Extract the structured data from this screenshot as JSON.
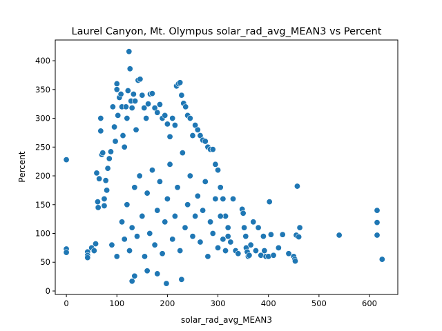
{
  "chart_data": {
    "type": "scatter",
    "title": "Laurel Canyon, Mt. Olympus solar_rad_avg_MEAN3 vs Percent",
    "xlabel": "solar_rad_avg_MEAN3",
    "ylabel": "Percent",
    "xlim": [
      -22,
      656
    ],
    "ylim": [
      -6,
      436
    ],
    "xticks": [
      0,
      100,
      200,
      300,
      400,
      500,
      600
    ],
    "yticks": [
      0,
      50,
      100,
      150,
      200,
      250,
      300,
      350,
      400
    ],
    "grid": false,
    "marker_color": "#1f77b4",
    "marker_edge_color": "#ffffff",
    "points": [
      [
        0,
        228
      ],
      [
        0,
        73
      ],
      [
        0,
        67
      ],
      [
        42,
        68
      ],
      [
        42,
        62
      ],
      [
        42,
        58
      ],
      [
        50,
        75
      ],
      [
        55,
        70
      ],
      [
        58,
        82
      ],
      [
        60,
        205
      ],
      [
        62,
        155
      ],
      [
        63,
        145
      ],
      [
        65,
        195
      ],
      [
        68,
        300
      ],
      [
        68,
        278
      ],
      [
        70,
        237
      ],
      [
        72,
        240
      ],
      [
        75,
        160
      ],
      [
        75,
        148
      ],
      [
        78,
        192
      ],
      [
        80,
        175
      ],
      [
        82,
        213
      ],
      [
        85,
        230
      ],
      [
        88,
        242
      ],
      [
        92,
        320
      ],
      [
        95,
        285
      ],
      [
        97,
        260
      ],
      [
        100,
        360
      ],
      [
        100,
        350
      ],
      [
        102,
        305
      ],
      [
        105,
        336
      ],
      [
        108,
        342
      ],
      [
        110,
        320
      ],
      [
        112,
        270
      ],
      [
        115,
        250
      ],
      [
        118,
        320
      ],
      [
        120,
        300
      ],
      [
        122,
        348
      ],
      [
        124,
        416
      ],
      [
        126,
        386
      ],
      [
        128,
        330
      ],
      [
        130,
        318
      ],
      [
        133,
        342
      ],
      [
        136,
        330
      ],
      [
        138,
        280
      ],
      [
        142,
        366
      ],
      [
        146,
        368
      ],
      [
        150,
        340
      ],
      [
        154,
        318
      ],
      [
        158,
        300
      ],
      [
        162,
        325
      ],
      [
        166,
        342
      ],
      [
        170,
        343
      ],
      [
        175,
        318
      ],
      [
        180,
        310
      ],
      [
        185,
        324
      ],
      [
        190,
        300
      ],
      [
        195,
        305
      ],
      [
        200,
        290
      ],
      [
        205,
        268
      ],
      [
        210,
        300
      ],
      [
        215,
        288
      ],
      [
        218,
        356
      ],
      [
        222,
        360
      ],
      [
        225,
        362
      ],
      [
        228,
        340
      ],
      [
        232,
        326
      ],
      [
        236,
        320
      ],
      [
        240,
        305
      ],
      [
        245,
        300
      ],
      [
        250,
        270
      ],
      [
        255,
        288
      ],
      [
        260,
        280
      ],
      [
        265,
        270
      ],
      [
        270,
        262
      ],
      [
        275,
        260
      ],
      [
        280,
        250
      ],
      [
        285,
        246
      ],
      [
        290,
        246
      ],
      [
        295,
        220
      ],
      [
        300,
        210
      ],
      [
        305,
        180
      ],
      [
        310,
        160
      ],
      [
        315,
        130
      ],
      [
        320,
        110
      ],
      [
        130,
        17
      ],
      [
        198,
        13
      ],
      [
        228,
        20
      ],
      [
        135,
        26
      ],
      [
        160,
        35
      ],
      [
        180,
        30
      ],
      [
        90,
        80
      ],
      [
        100,
        60
      ],
      [
        110,
        120
      ],
      [
        115,
        90
      ],
      [
        120,
        150
      ],
      [
        125,
        70
      ],
      [
        130,
        110
      ],
      [
        135,
        180
      ],
      [
        140,
        95
      ],
      [
        145,
        200
      ],
      [
        150,
        130
      ],
      [
        155,
        60
      ],
      [
        160,
        170
      ],
      [
        165,
        100
      ],
      [
        170,
        210
      ],
      [
        175,
        80
      ],
      [
        180,
        140
      ],
      [
        185,
        190
      ],
      [
        190,
        65
      ],
      [
        195,
        120
      ],
      [
        200,
        160
      ],
      [
        205,
        220
      ],
      [
        210,
        90
      ],
      [
        215,
        130
      ],
      [
        220,
        180
      ],
      [
        225,
        70
      ],
      [
        230,
        240
      ],
      [
        235,
        110
      ],
      [
        240,
        150
      ],
      [
        245,
        200
      ],
      [
        250,
        95
      ],
      [
        255,
        130
      ],
      [
        260,
        165
      ],
      [
        265,
        85
      ],
      [
        270,
        140
      ],
      [
        275,
        190
      ],
      [
        280,
        60
      ],
      [
        285,
        120
      ],
      [
        290,
        100
      ],
      [
        295,
        160
      ],
      [
        300,
        75
      ],
      [
        305,
        130
      ],
      [
        310,
        90
      ],
      [
        315,
        70
      ],
      [
        320,
        95
      ],
      [
        325,
        85
      ],
      [
        330,
        160
      ],
      [
        335,
        70
      ],
      [
        340,
        65
      ],
      [
        348,
        142
      ],
      [
        350,
        135
      ],
      [
        352,
        110
      ],
      [
        355,
        95
      ],
      [
        356,
        75
      ],
      [
        358,
        68
      ],
      [
        360,
        60
      ],
      [
        362,
        62
      ],
      [
        365,
        80
      ],
      [
        370,
        120
      ],
      [
        375,
        70
      ],
      [
        380,
        110
      ],
      [
        385,
        62
      ],
      [
        390,
        95
      ],
      [
        392,
        70
      ],
      [
        395,
        60
      ],
      [
        400,
        60
      ],
      [
        402,
        155
      ],
      [
        405,
        98
      ],
      [
        410,
        62
      ],
      [
        420,
        75
      ],
      [
        428,
        98
      ],
      [
        440,
        65
      ],
      [
        450,
        60
      ],
      [
        452,
        55
      ],
      [
        453,
        52
      ],
      [
        455,
        97
      ],
      [
        457,
        182
      ],
      [
        460,
        94
      ],
      [
        462,
        110
      ],
      [
        540,
        97
      ],
      [
        615,
        140
      ],
      [
        615,
        119
      ],
      [
        615,
        97
      ],
      [
        625,
        55
      ]
    ]
  }
}
